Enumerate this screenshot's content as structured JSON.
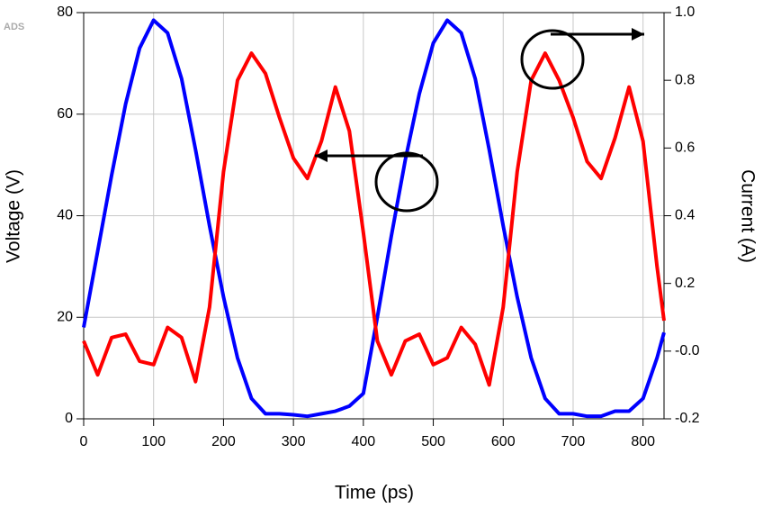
{
  "chart_data": {
    "type": "line",
    "watermark": "ADS",
    "x_label": "Time (ps)",
    "y_label": "Voltage (V)",
    "y2_label": "Current (A)",
    "x": [
      0,
      20,
      40,
      60,
      80,
      100,
      120,
      140,
      160,
      180,
      200,
      220,
      240,
      260,
      280,
      300,
      320,
      340,
      360,
      380,
      400,
      420,
      440,
      460,
      480,
      500,
      520,
      540,
      560,
      580,
      600,
      620,
      640,
      660,
      680,
      700,
      720,
      740,
      760,
      780,
      800,
      820,
      830
    ],
    "series": [
      {
        "name": "Voltage",
        "color": "#0000ff",
        "axis": "y",
        "values": [
          18,
          33,
          48,
          62,
          73,
          78.5,
          76,
          67,
          53,
          38,
          24,
          12,
          4,
          1,
          1,
          0.8,
          0.5,
          1,
          1.5,
          2.5,
          5,
          20,
          36,
          51,
          64,
          74,
          78.5,
          76,
          67,
          53,
          38,
          24,
          12,
          4,
          1,
          1,
          0.5,
          0.5,
          1.5,
          1.5,
          4,
          12,
          17
        ]
      },
      {
        "name": "Current",
        "color": "#ff0000",
        "axis": "y2",
        "values": [
          0.03,
          -0.07,
          0.04,
          0.05,
          -0.03,
          -0.04,
          0.07,
          0.04,
          -0.09,
          0.13,
          0.53,
          0.8,
          0.88,
          0.82,
          0.69,
          0.57,
          0.51,
          0.62,
          0.78,
          0.65,
          0.35,
          0.03,
          -0.07,
          0.03,
          0.05,
          -0.04,
          -0.02,
          0.07,
          0.02,
          -0.1,
          0.13,
          0.53,
          0.8,
          0.88,
          0.8,
          0.69,
          0.56,
          0.51,
          0.63,
          0.78,
          0.62,
          0.25,
          0.09
        ]
      }
    ],
    "xlim": [
      0,
      830
    ],
    "xticks": [
      0,
      100,
      200,
      300,
      400,
      500,
      600,
      700,
      800
    ],
    "ylim": [
      0,
      80
    ],
    "yticks": [
      0,
      20,
      40,
      60,
      80
    ],
    "y2lim": [
      -0.2,
      1.0
    ],
    "y2ticks": [
      {
        "value": -0.2,
        "label": "-0.2"
      },
      {
        "value": 0,
        "label": "-0.0"
      },
      {
        "value": 0.2,
        "label": "0.2"
      },
      {
        "value": 0.4,
        "label": "0.4"
      },
      {
        "value": 0.6,
        "label": "0.6"
      },
      {
        "value": 0.8,
        "label": "0.8"
      },
      {
        "value": 1.0,
        "label": "1.0"
      }
    ],
    "grid": true
  }
}
